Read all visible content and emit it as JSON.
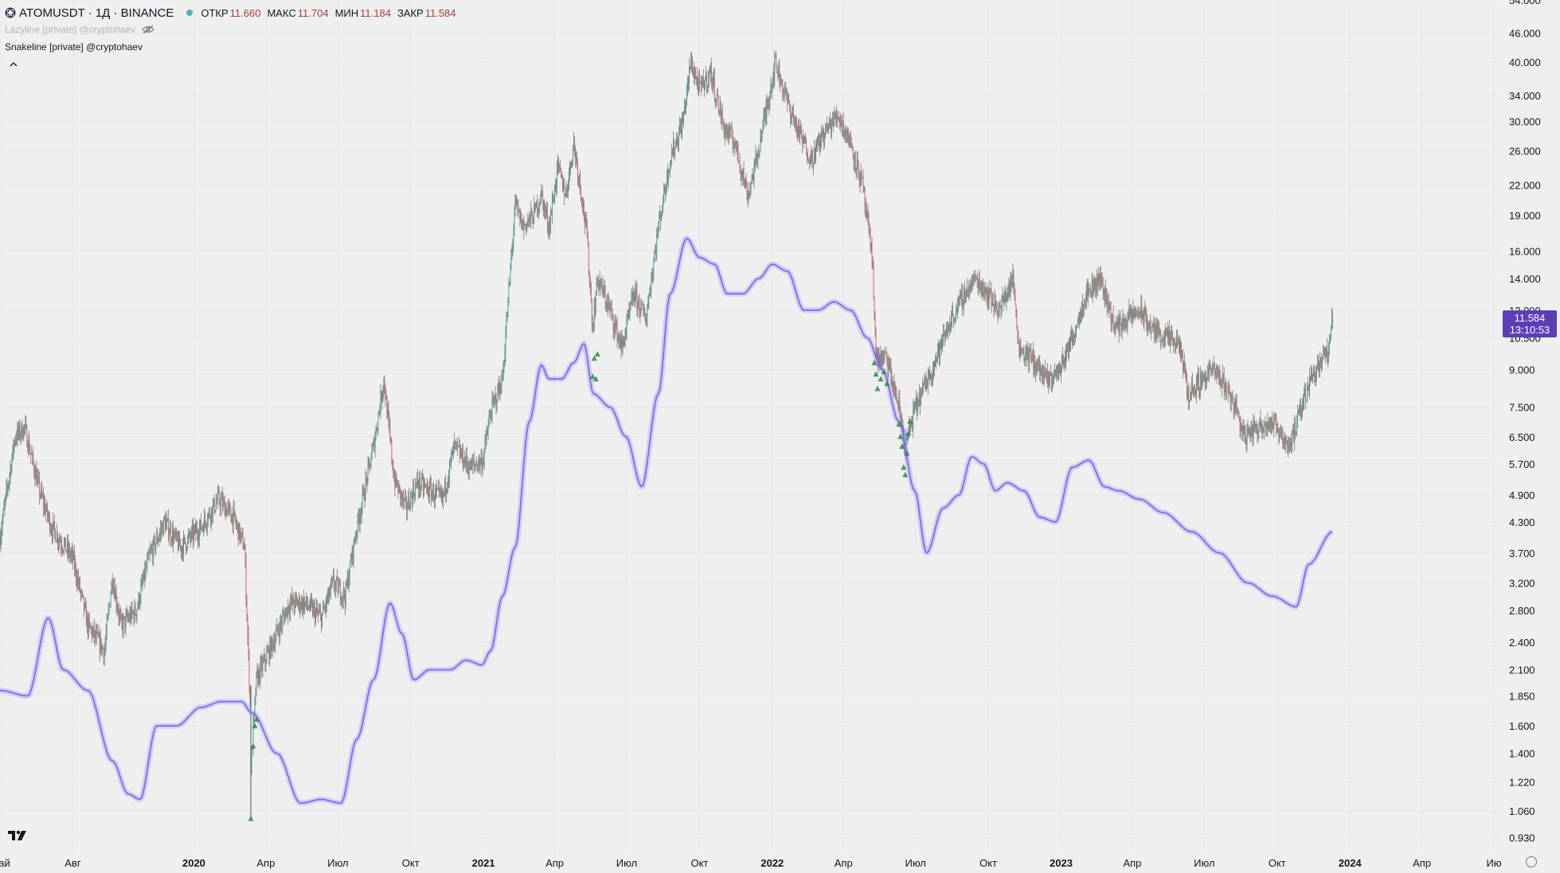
{
  "header": {
    "symbol_title": "ATOMUSDT · 1Д · BINANCE",
    "ohlc": [
      {
        "label": "ОТКР",
        "value": "11.660"
      },
      {
        "label": "МАКС",
        "value": "11.704"
      },
      {
        "label": "МИН",
        "value": "11.184"
      },
      {
        "label": "ЗАКР",
        "value": "11.584"
      }
    ]
  },
  "indicators": [
    {
      "name": "Lazyline [private] @cryptohaev",
      "hidden": true
    },
    {
      "name": "Snakeline [private] @cryptohaev",
      "hidden": false
    }
  ],
  "last_price": {
    "price": "11.584",
    "countdown": "13:10:53",
    "color": "#5b3fb6"
  },
  "colors": {
    "up": "#26a69a",
    "down": "#ef5350",
    "snakeline": "#7b6cf6",
    "signal": "#2e8b3e"
  },
  "chart_data": {
    "type": "candlestick",
    "symbol": "ATOMUSDT",
    "timeframe": "1Д",
    "exchange": "BINANCE",
    "y_scale": "log",
    "ylim": [
      0.87,
      54.0
    ],
    "xlim": [
      "2019-05-01",
      "2024-07-10"
    ],
    "y_ticks": [
      "54.000",
      "46.000",
      "40.000",
      "34.000",
      "30.000",
      "26.000",
      "22.000",
      "19.000",
      "16.000",
      "14.000",
      "12.000",
      "10.500",
      "9.000",
      "7.500",
      "6.500",
      "5.700",
      "4.900",
      "4.300",
      "3.700",
      "3.200",
      "2.800",
      "2.400",
      "2.100",
      "1.850",
      "1.600",
      "1.400",
      "1.220",
      "1.060",
      "0.930"
    ],
    "x_ticks": [
      {
        "date": "2019-05-01",
        "label": "Май",
        "bold": false
      },
      {
        "date": "2019-08-01",
        "label": "Авг",
        "bold": false
      },
      {
        "date": "2020-01-01",
        "label": "2020",
        "bold": true
      },
      {
        "date": "2020-04-01",
        "label": "Апр",
        "bold": false
      },
      {
        "date": "2020-07-01",
        "label": "Июл",
        "bold": false
      },
      {
        "date": "2020-10-01",
        "label": "Окт",
        "bold": false
      },
      {
        "date": "2021-01-01",
        "label": "2021",
        "bold": true
      },
      {
        "date": "2021-04-01",
        "label": "Апр",
        "bold": false
      },
      {
        "date": "2021-07-01",
        "label": "Июл",
        "bold": false
      },
      {
        "date": "2021-10-01",
        "label": "Окт",
        "bold": false
      },
      {
        "date": "2022-01-01",
        "label": "2022",
        "bold": true
      },
      {
        "date": "2022-04-01",
        "label": "Апр",
        "bold": false
      },
      {
        "date": "2022-07-01",
        "label": "Июл",
        "bold": false
      },
      {
        "date": "2022-10-01",
        "label": "Окт",
        "bold": false
      },
      {
        "date": "2023-01-01",
        "label": "2023",
        "bold": true
      },
      {
        "date": "2023-04-01",
        "label": "Апр",
        "bold": false
      },
      {
        "date": "2023-07-01",
        "label": "Июл",
        "bold": false
      },
      {
        "date": "2023-10-01",
        "label": "Окт",
        "bold": false
      },
      {
        "date": "2024-01-01",
        "label": "2024",
        "bold": true
      },
      {
        "date": "2024-04-01",
        "label": "Апр",
        "bold": false
      },
      {
        "date": "2024-07-01",
        "label": "Ию",
        "bold": false
      }
    ],
    "price_path": [
      [
        "2019-05-01",
        4.0
      ],
      [
        "2019-05-20",
        6.5
      ],
      [
        "2019-06-01",
        6.8
      ],
      [
        "2019-06-20",
        5.0
      ],
      [
        "2019-07-05",
        4.2
      ],
      [
        "2019-08-01",
        3.6
      ],
      [
        "2019-08-20",
        2.6
      ],
      [
        "2019-09-10",
        2.3
      ],
      [
        "2019-09-20",
        3.3
      ],
      [
        "2019-10-01",
        2.6
      ],
      [
        "2019-10-20",
        2.8
      ],
      [
        "2019-11-05",
        3.6
      ],
      [
        "2019-11-25",
        4.3
      ],
      [
        "2019-12-15",
        3.8
      ],
      [
        "2020-01-10",
        4.2
      ],
      [
        "2020-02-01",
        4.8
      ],
      [
        "2020-02-20",
        4.4
      ],
      [
        "2020-03-05",
        3.8
      ],
      [
        "2020-03-12",
        1.8
      ],
      [
        "2020-03-13",
        1.3
      ],
      [
        "2020-03-20",
        2.0
      ],
      [
        "2020-04-10",
        2.4
      ],
      [
        "2020-05-01",
        2.9
      ],
      [
        "2020-05-20",
        2.9
      ],
      [
        "2020-06-10",
        2.7
      ],
      [
        "2020-06-25",
        3.2
      ],
      [
        "2020-07-10",
        3.0
      ],
      [
        "2020-07-25",
        4.2
      ],
      [
        "2020-08-15",
        6.2
      ],
      [
        "2020-08-28",
        8.6
      ],
      [
        "2020-09-10",
        5.3
      ],
      [
        "2020-09-25",
        4.6
      ],
      [
        "2020-10-10",
        5.2
      ],
      [
        "2020-10-25",
        5.0
      ],
      [
        "2020-11-10",
        4.8
      ],
      [
        "2020-11-25",
        6.2
      ],
      [
        "2020-12-15",
        5.6
      ],
      [
        "2020-12-31",
        5.8
      ],
      [
        "2021-01-10",
        7.3
      ],
      [
        "2021-01-25",
        8.6
      ],
      [
        "2021-02-10",
        20.0
      ],
      [
        "2021-02-20",
        18.0
      ],
      [
        "2021-03-05",
        19.0
      ],
      [
        "2021-03-15",
        21.0
      ],
      [
        "2021-03-25",
        18.0
      ],
      [
        "2021-04-05",
        24.0
      ],
      [
        "2021-04-15",
        21.0
      ],
      [
        "2021-04-25",
        27.0
      ],
      [
        "2021-05-05",
        21.0
      ],
      [
        "2021-05-12",
        17.0
      ],
      [
        "2021-05-19",
        11.0
      ],
      [
        "2021-05-25",
        14.0
      ],
      [
        "2021-06-10",
        12.0
      ],
      [
        "2021-06-25",
        10.0
      ],
      [
        "2021-07-10",
        13.0
      ],
      [
        "2021-07-25",
        11.5
      ],
      [
        "2021-08-10",
        18.0
      ],
      [
        "2021-08-25",
        25.0
      ],
      [
        "2021-09-10",
        30.0
      ],
      [
        "2021-09-20",
        40.0
      ],
      [
        "2021-10-01",
        35.0
      ],
      [
        "2021-10-15",
        38.0
      ],
      [
        "2021-11-01",
        29.0
      ],
      [
        "2021-11-15",
        27.0
      ],
      [
        "2021-12-01",
        21.0
      ],
      [
        "2021-12-10",
        24.0
      ],
      [
        "2022-01-05",
        40.0
      ],
      [
        "2022-01-20",
        33.0
      ],
      [
        "2022-02-05",
        28.0
      ],
      [
        "2022-02-20",
        25.0
      ],
      [
        "2022-03-05",
        28.0
      ],
      [
        "2022-03-25",
        31.0
      ],
      [
        "2022-04-10",
        27.0
      ],
      [
        "2022-04-25",
        22.0
      ],
      [
        "2022-05-08",
        15.0
      ],
      [
        "2022-05-12",
        9.5
      ],
      [
        "2022-05-25",
        9.5
      ],
      [
        "2022-06-10",
        7.5
      ],
      [
        "2022-06-18",
        6.2
      ],
      [
        "2022-07-01",
        7.5
      ],
      [
        "2022-07-15",
        8.5
      ],
      [
        "2022-08-01",
        10.0
      ],
      [
        "2022-08-15",
        11.5
      ],
      [
        "2022-09-01",
        13.0
      ],
      [
        "2022-09-15",
        14.0
      ],
      [
        "2022-10-01",
        13.0
      ],
      [
        "2022-10-15",
        12.0
      ],
      [
        "2022-11-01",
        14.0
      ],
      [
        "2022-11-09",
        10.0
      ],
      [
        "2022-11-25",
        9.5
      ],
      [
        "2022-12-15",
        8.5
      ],
      [
        "2022-12-30",
        9.0
      ],
      [
        "2023-01-15",
        10.5
      ],
      [
        "2023-02-01",
        13.0
      ],
      [
        "2023-02-20",
        14.0
      ],
      [
        "2023-03-10",
        11.0
      ],
      [
        "2023-03-25",
        11.5
      ],
      [
        "2023-04-10",
        12.0
      ],
      [
        "2023-04-25",
        11.0
      ],
      [
        "2023-05-15",
        10.5
      ],
      [
        "2023-06-01",
        10.0
      ],
      [
        "2023-06-10",
        8.0
      ],
      [
        "2023-06-25",
        8.5
      ],
      [
        "2023-07-10",
        9.0
      ],
      [
        "2023-07-25",
        8.5
      ],
      [
        "2023-08-10",
        7.5
      ],
      [
        "2023-08-20",
        6.5
      ],
      [
        "2023-09-05",
        6.8
      ],
      [
        "2023-09-20",
        7.0
      ],
      [
        "2023-10-05",
        6.7
      ],
      [
        "2023-10-15",
        6.2
      ],
      [
        "2023-10-25",
        6.8
      ],
      [
        "2023-11-10",
        8.5
      ],
      [
        "2023-11-25",
        9.5
      ],
      [
        "2023-12-05",
        9.8
      ],
      [
        "2023-12-10",
        11.6
      ]
    ],
    "snakeline_path": [
      [
        "2019-05-01",
        1.9
      ],
      [
        "2019-06-05",
        1.85
      ],
      [
        "2019-07-01",
        2.7
      ],
      [
        "2019-07-20",
        2.1
      ],
      [
        "2019-08-20",
        1.9
      ],
      [
        "2019-09-20",
        1.35
      ],
      [
        "2019-10-10",
        1.15
      ],
      [
        "2019-10-25",
        1.12
      ],
      [
        "2019-11-15",
        1.6
      ],
      [
        "2019-12-10",
        1.6
      ],
      [
        "2020-01-10",
        1.75
      ],
      [
        "2020-02-05",
        1.8
      ],
      [
        "2020-03-01",
        1.8
      ],
      [
        "2020-03-15",
        1.7
      ],
      [
        "2020-04-15",
        1.4
      ],
      [
        "2020-05-15",
        1.1
      ],
      [
        "2020-06-10",
        1.12
      ],
      [
        "2020-07-05",
        1.1
      ],
      [
        "2020-07-25",
        1.5
      ],
      [
        "2020-08-15",
        2.0
      ],
      [
        "2020-09-05",
        2.9
      ],
      [
        "2020-09-20",
        2.5
      ],
      [
        "2020-10-05",
        2.0
      ],
      [
        "2020-10-25",
        2.1
      ],
      [
        "2020-11-20",
        2.1
      ],
      [
        "2020-12-10",
        2.2
      ],
      [
        "2020-12-30",
        2.15
      ],
      [
        "2021-01-10",
        2.3
      ],
      [
        "2021-01-25",
        3.0
      ],
      [
        "2021-02-10",
        3.8
      ],
      [
        "2021-02-28",
        7.0
      ],
      [
        "2021-03-15",
        9.2
      ],
      [
        "2021-03-25",
        8.6
      ],
      [
        "2021-04-10",
        8.6
      ],
      [
        "2021-04-25",
        9.3
      ],
      [
        "2021-05-08",
        10.2
      ],
      [
        "2021-05-20",
        8.0
      ],
      [
        "2021-06-10",
        7.5
      ],
      [
        "2021-06-30",
        6.5
      ],
      [
        "2021-07-20",
        5.1
      ],
      [
        "2021-08-10",
        8.0
      ],
      [
        "2021-08-25",
        13.0
      ],
      [
        "2021-09-15",
        17.0
      ],
      [
        "2021-10-01",
        15.5
      ],
      [
        "2021-10-20",
        15.0
      ],
      [
        "2021-11-05",
        13.0
      ],
      [
        "2021-11-25",
        13.0
      ],
      [
        "2021-12-15",
        14.0
      ],
      [
        "2022-01-01",
        15.0
      ],
      [
        "2022-01-20",
        14.5
      ],
      [
        "2022-02-10",
        12.0
      ],
      [
        "2022-02-28",
        12.0
      ],
      [
        "2022-03-20",
        12.5
      ],
      [
        "2022-04-10",
        12.0
      ],
      [
        "2022-05-01",
        10.5
      ],
      [
        "2022-05-20",
        9.0
      ],
      [
        "2022-06-10",
        7.0
      ],
      [
        "2022-06-30",
        5.0
      ],
      [
        "2022-07-15",
        3.7
      ],
      [
        "2022-08-05",
        4.6
      ],
      [
        "2022-08-25",
        4.9
      ],
      [
        "2022-09-10",
        5.9
      ],
      [
        "2022-09-25",
        5.7
      ],
      [
        "2022-10-10",
        5.0
      ],
      [
        "2022-10-25",
        5.2
      ],
      [
        "2022-11-15",
        5.0
      ],
      [
        "2022-12-05",
        4.4
      ],
      [
        "2022-12-25",
        4.3
      ],
      [
        "2023-01-15",
        5.6
      ],
      [
        "2023-02-05",
        5.8
      ],
      [
        "2023-02-25",
        5.1
      ],
      [
        "2023-03-15",
        5.0
      ],
      [
        "2023-04-10",
        4.8
      ],
      [
        "2023-05-10",
        4.5
      ],
      [
        "2023-06-15",
        4.1
      ],
      [
        "2023-07-20",
        3.7
      ],
      [
        "2023-08-25",
        3.2
      ],
      [
        "2023-09-25",
        3.0
      ],
      [
        "2023-10-25",
        2.85
      ],
      [
        "2023-11-10",
        3.5
      ],
      [
        "2023-12-10",
        4.1
      ]
    ],
    "signals": [
      {
        "date": "2020-03-13",
        "price": 1.02
      },
      {
        "date": "2020-03-16",
        "price": 1.45
      },
      {
        "date": "2020-03-18",
        "price": 1.6
      },
      {
        "date": "2020-03-20",
        "price": 1.65
      },
      {
        "date": "2021-05-19",
        "price": 8.7
      },
      {
        "date": "2021-05-21",
        "price": 9.5
      },
      {
        "date": "2021-05-23",
        "price": 8.6
      },
      {
        "date": "2021-05-25",
        "price": 9.7
      },
      {
        "date": "2022-05-10",
        "price": 9.3
      },
      {
        "date": "2022-05-12",
        "price": 8.8
      },
      {
        "date": "2022-05-14",
        "price": 8.2
      },
      {
        "date": "2022-05-18",
        "price": 8.6
      },
      {
        "date": "2022-05-22",
        "price": 8.9
      },
      {
        "date": "2022-05-26",
        "price": 8.4
      },
      {
        "date": "2022-06-10",
        "price": 6.9
      },
      {
        "date": "2022-06-12",
        "price": 6.5
      },
      {
        "date": "2022-06-14",
        "price": 6.2
      },
      {
        "date": "2022-06-16",
        "price": 5.6
      },
      {
        "date": "2022-06-18",
        "price": 5.4
      },
      {
        "date": "2022-06-20",
        "price": 6.0
      },
      {
        "date": "2022-06-22",
        "price": 6.6
      },
      {
        "date": "2022-06-24",
        "price": 7.0
      }
    ]
  }
}
